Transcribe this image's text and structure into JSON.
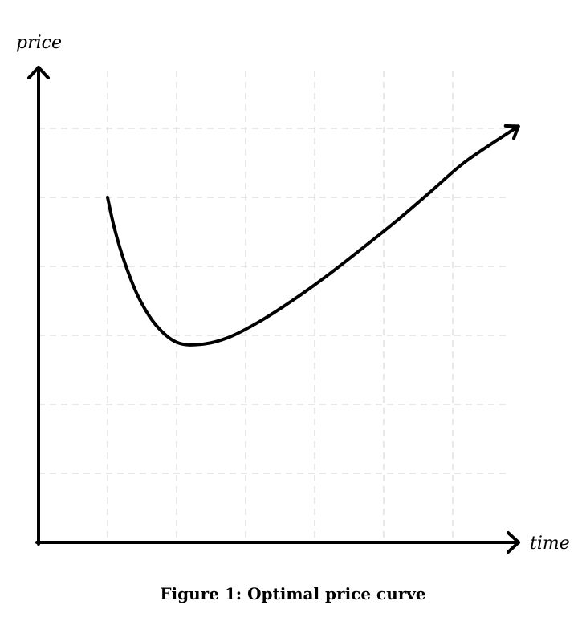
{
  "caption": "Figure 1: Optimal price curve",
  "chart_data": {
    "type": "line",
    "xlabel": "time",
    "ylabel": "price",
    "grid": true,
    "xlim": [
      0,
      7
    ],
    "ylim": [
      0,
      7
    ],
    "series": [
      {
        "x": [
          1.0,
          1.1,
          1.25,
          1.45,
          1.7,
          2.0,
          2.35,
          2.75,
          3.2,
          3.7,
          4.2,
          4.7,
          5.2,
          5.7,
          6.2,
          6.95
        ],
        "y": [
          5.0,
          4.55,
          4.05,
          3.55,
          3.15,
          2.9,
          2.87,
          2.97,
          3.2,
          3.52,
          3.88,
          4.27,
          4.67,
          5.1,
          5.53,
          6.03
        ]
      }
    ],
    "colors": {
      "curve": "#000000",
      "axes": "#000000",
      "grid": "#d0d0d0"
    }
  }
}
